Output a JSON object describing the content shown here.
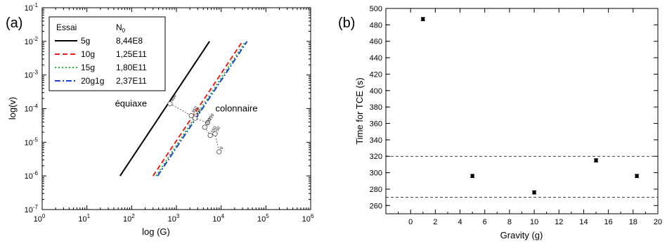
{
  "chart_data": [
    {
      "panel_label": "(a)",
      "type": "line",
      "xlabel": "log (G)",
      "ylabel": "log(v)",
      "xscale": "log",
      "yscale": "log",
      "xlim": [
        1,
        1000000
      ],
      "ylim": [
        1e-07,
        0.1
      ],
      "x_tick_labels": [
        "10^0",
        "10^1",
        "10^2",
        "10^3",
        "10^4",
        "10^5",
        "10^6"
      ],
      "y_tick_labels": [
        "10^-7",
        "10^-6",
        "10^-5",
        "10^-4",
        "10^-3",
        "10^-2",
        "10^-1"
      ],
      "legend": {
        "placement": "top-left",
        "header_name": "Essai",
        "header_value": "N",
        "header_value_sub": "0",
        "entries": [
          {
            "name": "5g",
            "value": "8,44E8",
            "color": "#000000",
            "dash": "solid"
          },
          {
            "name": "10g",
            "value": "1,25E11",
            "color": "#e8211f",
            "dash": "dashed"
          },
          {
            "name": "15g",
            "value": "1,80E11",
            "color": "#2bb52b",
            "dash": "dotted"
          },
          {
            "name": "20g1g",
            "value": "2,37E11",
            "color": "#1f3fdd",
            "dash": "dashdot"
          }
        ]
      },
      "series": [
        {
          "name": "5g",
          "color": "#000000",
          "dash": "solid",
          "points": [
            [
              55,
              1e-06
            ],
            [
              5500,
              0.01
            ]
          ]
        },
        {
          "name": "10g",
          "color": "#e8211f",
          "dash": "dashed",
          "points": [
            [
              300,
              1e-06
            ],
            [
              30000,
              0.01
            ]
          ]
        },
        {
          "name": "15g",
          "color": "#2bb52b",
          "dash": "dotted",
          "points": [
            [
              350,
              1e-06
            ],
            [
              35000,
              0.01
            ]
          ]
        },
        {
          "name": "20g1g",
          "color": "#1f3fdd",
          "dash": "dashdot",
          "points": [
            [
              380,
              1e-06
            ],
            [
              38000,
              0.01
            ]
          ]
        }
      ],
      "annotations": [
        {
          "text": "équiaxe",
          "x": 180,
          "y": 0.00014
        },
        {
          "text": "colonnaire",
          "x": 22000,
          "y": 0.0001
        }
      ],
      "trajectory": [
        {
          "label": "400",
          "x": 720,
          "y": 0.00014
        },
        {
          "label": "350",
          "x": 2150,
          "y": 6.2e-05
        },
        {
          "label": "300",
          "x": 2600,
          "y": 5.2e-05
        },
        {
          "label": "250",
          "x": 5000,
          "y": 3.8e-05
        },
        {
          "label": "200",
          "x": 4300,
          "y": 2.8e-05
        },
        {
          "label": "150",
          "x": 5700,
          "y": 1.6e-05
        },
        {
          "label": "50",
          "x": 7300,
          "y": 1.8e-05
        },
        {
          "label": "0",
          "x": 9000,
          "y": 5.2e-06
        }
      ]
    },
    {
      "panel_label": "(b)",
      "type": "scatter",
      "xlabel": "Gravity (g)",
      "ylabel": "Time for  TCE (s)",
      "xlim": [
        -2,
        20
      ],
      "ylim": [
        250,
        500
      ],
      "x_ticks": [
        0,
        2,
        4,
        6,
        8,
        10,
        12,
        14,
        16,
        18,
        20
      ],
      "y_ticks": [
        260,
        280,
        300,
        320,
        340,
        360,
        380,
        400,
        420,
        440,
        460,
        480,
        500
      ],
      "points": [
        {
          "x": 1,
          "y": 487,
          "err": 2
        },
        {
          "x": 5,
          "y": 296,
          "err": 2
        },
        {
          "x": 10,
          "y": 276,
          "err": 2
        },
        {
          "x": 15,
          "y": 315,
          "err": 2
        },
        {
          "x": 18.3,
          "y": 296,
          "err": 2
        }
      ],
      "hlines": [
        320,
        270
      ]
    }
  ]
}
